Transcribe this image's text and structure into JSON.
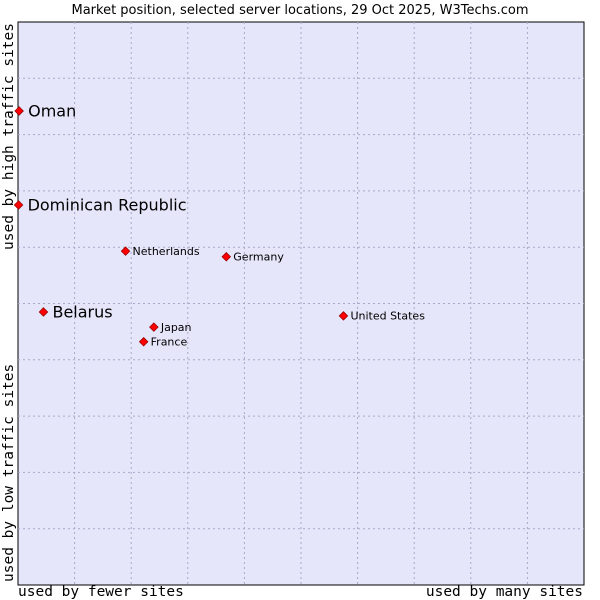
{
  "chart_data": {
    "type": "scatter",
    "title": "Market position, selected server locations, 29 Oct 2025, W3Techs.com",
    "xlabel_low": "used by fewer sites",
    "xlabel_high": "used by many sites",
    "ylabel_low": "used by low traffic sites",
    "ylabel_high": "used by high traffic sites",
    "xlim": [
      0,
      100
    ],
    "ylim": [
      0,
      100
    ],
    "grid": true,
    "colors": {
      "plot_bg": "#e6e6fa",
      "grid": "#a8a8c8",
      "point": "#ff0000",
      "point_outline": "#990000"
    },
    "points": [
      {
        "name": "Oman",
        "x": 0.2,
        "y": 84.2,
        "emphasis": true
      },
      {
        "name": "Dominican Republic",
        "x": 0.1,
        "y": 67.5,
        "emphasis": true
      },
      {
        "name": "Netherlands",
        "x": 19.0,
        "y": 59.3,
        "emphasis": false
      },
      {
        "name": "Germany",
        "x": 36.8,
        "y": 58.3,
        "emphasis": false
      },
      {
        "name": "Belarus",
        "x": 4.5,
        "y": 48.5,
        "emphasis": true
      },
      {
        "name": "United States",
        "x": 57.5,
        "y": 47.8,
        "emphasis": false
      },
      {
        "name": "Japan",
        "x": 24.0,
        "y": 45.8,
        "emphasis": false
      },
      {
        "name": "France",
        "x": 22.2,
        "y": 43.2,
        "emphasis": false
      }
    ]
  }
}
